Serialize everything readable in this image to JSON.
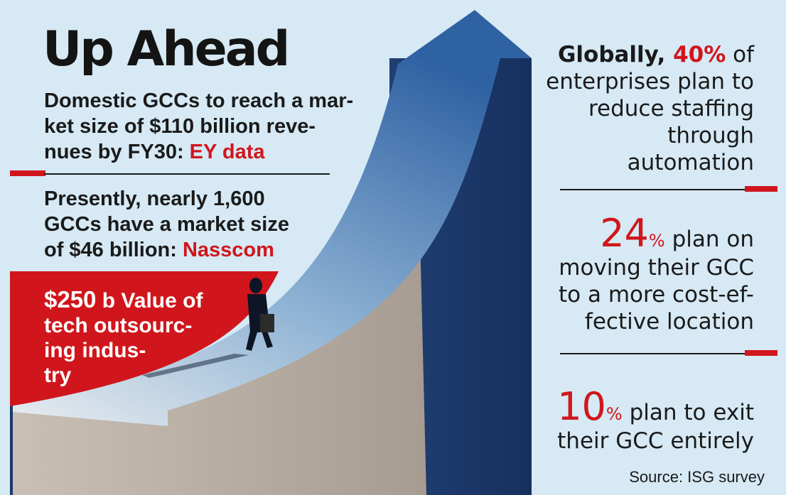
{
  "headline": "Up Ahead",
  "left": {
    "ey": {
      "line1": "Domestic GCCs to reach a mar-",
      "line2": "ket size of $110 billion reve-",
      "line3": "nues by FY30: ",
      "source": "EY data"
    },
    "nasscom": {
      "line1": "Presently, nearly 1,600",
      "line2": "GCCs have a market size",
      "line3": "of $46 billion: ",
      "source": "Nasscom"
    },
    "banner": {
      "value": "$250",
      "line1": " b Value of",
      "line2": "tech outsourc-",
      "line3": "ing indus-",
      "line4": "try"
    }
  },
  "right": {
    "s1": {
      "lead": "Globally, ",
      "value": "40%",
      "tail": " of",
      "line2": "enterprises plan to",
      "line3": "reduce staffing",
      "line4": "through",
      "line5": "automation"
    },
    "s2": {
      "value": "24",
      "pct": "%",
      "tail": " plan on",
      "line2": "moving their GCC",
      "line3": "to a more cost-ef-",
      "line4": "fective location"
    },
    "s3": {
      "value": "10",
      "pct": "%",
      "tail": " plan to exit",
      "line2": "their GCC entirely"
    }
  },
  "source": "Source: ISG survey",
  "colors": {
    "accent_red": "#d0161c",
    "background": "#d6e9f4",
    "pillar_blue": "#1b3a6b"
  }
}
